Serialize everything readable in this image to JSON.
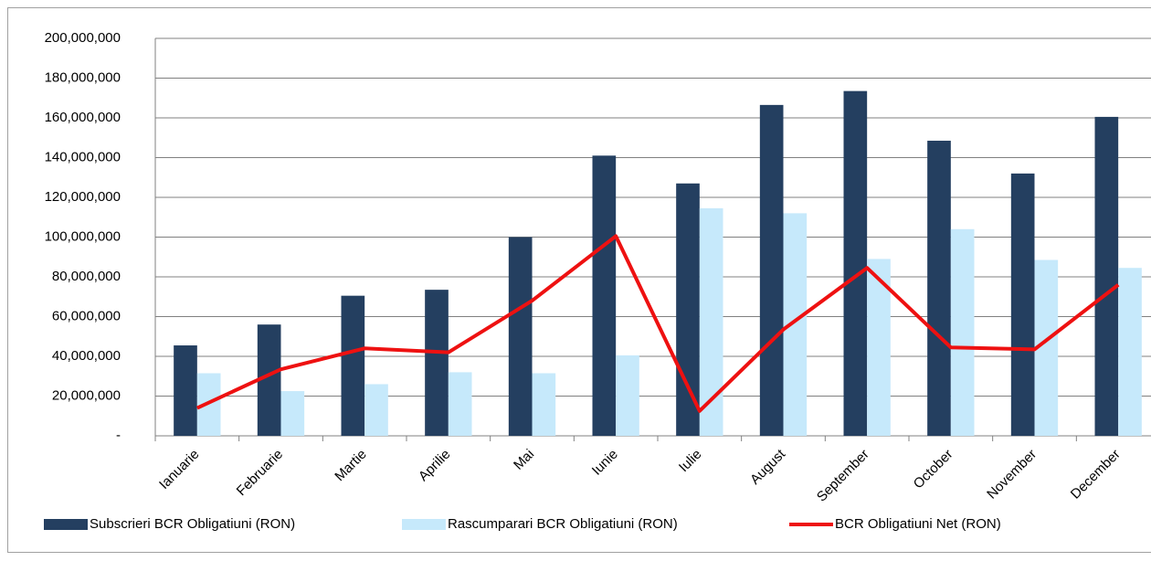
{
  "chart_data": {
    "type": "bar_line",
    "categories": [
      "Ianuarie",
      "Februarie",
      "Martie",
      "Aprilie",
      "Mai",
      "Iunie",
      "Iulie",
      "August",
      "September",
      "October",
      "November",
      "December"
    ],
    "series": [
      {
        "name": "Subscrieri BCR Obligatiuni (RON)",
        "type": "bar",
        "color": "#243f60",
        "values": [
          45500000,
          56000000,
          70500000,
          73500000,
          100000000,
          141000000,
          127000000,
          166500000,
          173500000,
          148500000,
          132000000,
          160500000
        ]
      },
      {
        "name": "Rascumparari BCR Obligatiuni (RON)",
        "type": "bar",
        "color": "#c6e9fb",
        "values": [
          31500000,
          22500000,
          26000000,
          32000000,
          31500000,
          40500000,
          114500000,
          112000000,
          89000000,
          104000000,
          88500000,
          84500000
        ]
      },
      {
        "name": "BCR Obligatiuni  Net (RON)",
        "type": "line",
        "color": "#ee1111",
        "values": [
          14000000,
          33500000,
          44000000,
          42000000,
          68000000,
          100500000,
          12500000,
          53500000,
          84500000,
          44500000,
          43500000,
          76000000
        ]
      }
    ],
    "ylim": [
      0,
      200000000
    ],
    "yticks": [
      {
        "value": 0,
        "label": "-"
      },
      {
        "value": 20000000,
        "label": "20,000,000"
      },
      {
        "value": 40000000,
        "label": "40,000,000"
      },
      {
        "value": 60000000,
        "label": "60,000,000"
      },
      {
        "value": 80000000,
        "label": "80,000,000"
      },
      {
        "value": 100000000,
        "label": "100,000,000"
      },
      {
        "value": 120000000,
        "label": "120,000,000"
      },
      {
        "value": 140000000,
        "label": "140,000,000"
      },
      {
        "value": 160000000,
        "label": "160,000,000"
      },
      {
        "value": 180000000,
        "label": "180,000,000"
      },
      {
        "value": 200000000,
        "label": "200,000,000"
      }
    ],
    "legend": "bottom"
  }
}
